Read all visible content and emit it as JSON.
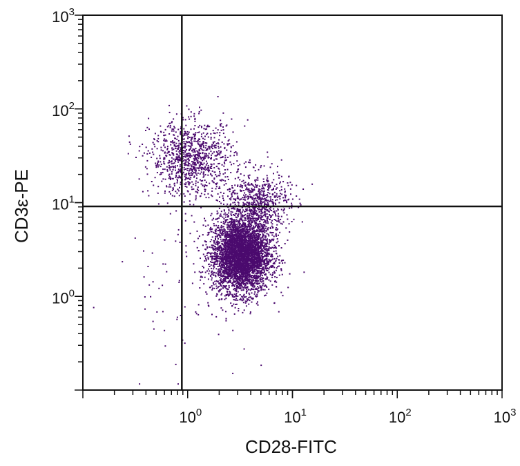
{
  "chart_data": {
    "type": "scatter",
    "xlabel": "CD28-FITC",
    "ylabel": "CD3ε-PE",
    "x_scale": "log10",
    "y_scale": "log10",
    "xlim": [
      0.1,
      1000
    ],
    "ylim": [
      0.1,
      1000
    ],
    "x_ticks": [
      {
        "base": "10",
        "exp": "0",
        "value": 1
      },
      {
        "base": "10",
        "exp": "1",
        "value": 10
      },
      {
        "base": "10",
        "exp": "2",
        "value": 100
      },
      {
        "base": "10",
        "exp": "3",
        "value": 1000
      }
    ],
    "y_ticks": [
      {
        "base": "10",
        "exp": "0",
        "value": 1
      },
      {
        "base": "10",
        "exp": "1",
        "value": 10
      },
      {
        "base": "10",
        "exp": "2",
        "value": 100
      },
      {
        "base": "10",
        "exp": "3",
        "value": 1000
      }
    ],
    "quadrant_gate": {
      "x": 0.88,
      "y": 9.1
    },
    "point_color": "#4b0a6e",
    "populations": [
      {
        "center": [
          3.2,
          2.8
        ],
        "spread": [
          0.14,
          0.2
        ],
        "count": 4200
      },
      {
        "center": [
          1.1,
          30
        ],
        "spread": [
          0.2,
          0.2
        ],
        "count": 1000
      },
      {
        "center": [
          4.5,
          10
        ],
        "spread": [
          0.16,
          0.17
        ],
        "count": 700
      },
      {
        "center": [
          0.9,
          1.5
        ],
        "spread": [
          0.32,
          0.4
        ],
        "count": 70
      }
    ],
    "grid": false,
    "legend": "none"
  }
}
